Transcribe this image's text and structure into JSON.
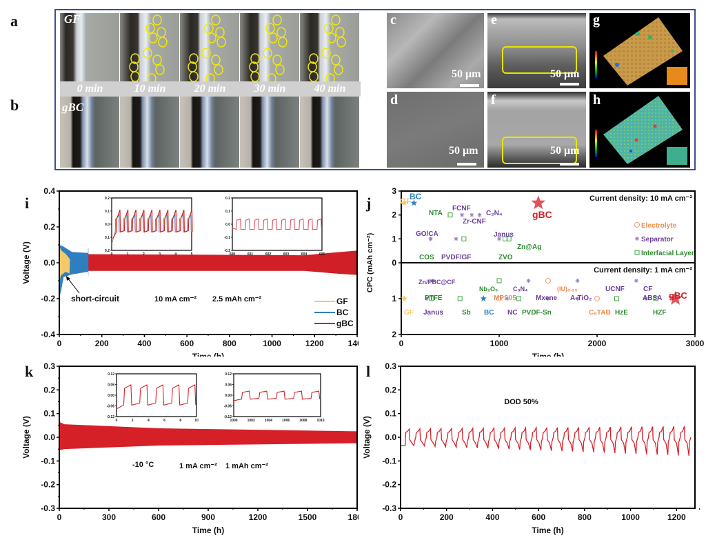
{
  "panel_labels": {
    "a": "a",
    "b": "b",
    "c": "c",
    "d": "d",
    "e": "e",
    "f": "f",
    "g": "g",
    "h": "h",
    "i": "i",
    "j": "j",
    "k": "k",
    "l": "l"
  },
  "microscopy": {
    "row_a_label": "GF",
    "row_b_label": "gBC",
    "time_labels": [
      "0 min",
      "10 min",
      "20 min",
      "30 min",
      "40 min"
    ],
    "scale_bar": "50 μm"
  },
  "colors": {
    "GF": "#f5c96a",
    "BC": "#2f7fc0",
    "gBC": "#d01f26",
    "red_line": "#d62028",
    "separator": "#6a3d9a",
    "interfacial": "#2e8b2e",
    "electrolyte": "#f08a4b"
  },
  "chart_data": [
    {
      "id": "i",
      "type": "line",
      "xlabel": "Time (h)",
      "ylabel": "Voltage (V)",
      "xlim": [
        0,
        1400
      ],
      "ylim": [
        -0.4,
        0.4
      ],
      "xticks": [
        "0",
        "200",
        "400",
        "600",
        "800",
        "1000",
        "1200",
        "1400"
      ],
      "yticks": [
        "-0.4",
        "-0.2",
        "0.0",
        "0.2",
        "0.4"
      ],
      "annotations": [
        "short-circuit",
        "10 mA cm⁻²",
        "2.5 mAh cm⁻²"
      ],
      "legend": [
        "GF",
        "BC",
        "gBC"
      ],
      "legend_position": "bottom-right",
      "series": [
        {
          "name": "GF",
          "x_end": 50,
          "envelope": [
            0.1,
            -0.12
          ]
        },
        {
          "name": "BC",
          "x_end": 135,
          "envelope": [
            0.1,
            -0.18
          ]
        },
        {
          "name": "gBC",
          "x_start": 135,
          "x_end": 1400,
          "envelope": [
            0.05,
            -0.05
          ]
        }
      ],
      "insets": [
        {
          "xlim": [
            0,
            5
          ],
          "ylim": [
            -0.2,
            0.2
          ],
          "xticks": [
            "0",
            "1",
            "2",
            "3",
            "4",
            "5"
          ],
          "yticks": [
            "0.2",
            "0.1",
            "0.0",
            "0.1",
            "0.2"
          ],
          "series": [
            "GF",
            "BC",
            "gBC"
          ],
          "cycles": 10
        },
        {
          "xlim": [
            600,
            605
          ],
          "ylim": [
            -0.2,
            0.2
          ],
          "xticks": [
            "600",
            "601",
            "602",
            "603",
            "604",
            "605"
          ],
          "yticks": [
            "0.2",
            "0.1",
            "0.0",
            "-0.1",
            "-0.2"
          ],
          "series": [
            "gBC"
          ],
          "cycles": 10,
          "amplitude": 0.04
        }
      ]
    },
    {
      "id": "j",
      "type": "scatter",
      "xlabel": "Time (h)",
      "ylabel": "CPC (mAh cm⁻²)",
      "xlim": [
        0,
        3000
      ],
      "xticks": [
        "0",
        "1000",
        "2000",
        "3000"
      ],
      "top_panel": {
        "title": "Current density: 10 mA cm⁻²",
        "ylim": [
          0,
          3
        ],
        "yticks": [
          "0",
          "1",
          "2",
          "3"
        ],
        "points": [
          {
            "label": "GF",
            "x": 30,
            "y": 2.5,
            "cat": "GF"
          },
          {
            "label": "BC",
            "x": 130,
            "y": 2.5,
            "cat": "BC"
          },
          {
            "label": "NTA",
            "x": 500,
            "y": 2.0,
            "cat": "interfacial"
          },
          {
            "label": "FCNF",
            "x": 620,
            "y": 2.0,
            "cat": "separator"
          },
          {
            "label": "Zr-CNF",
            "x": 720,
            "y": 2.0,
            "cat": "separator"
          },
          {
            "label": "C₂N₄",
            "x": 800,
            "y": 2.0,
            "cat": "separator"
          },
          {
            "label": "GO/CA",
            "x": 300,
            "y": 1.0,
            "cat": "separator"
          },
          {
            "label": "COS",
            "x": 300,
            "y": 1.0,
            "cat": "separator"
          },
          {
            "label": "PVDF/GF",
            "x": 560,
            "y": 1.0,
            "cat": "separator"
          },
          {
            "label": "PVDF/GF",
            "x": 640,
            "y": 1.0,
            "cat": "interfacial"
          },
          {
            "label": "Janus",
            "x": 1000,
            "y": 1.0,
            "cat": "separator"
          },
          {
            "label": "ZVO",
            "x": 1060,
            "y": 1.0,
            "cat": "interfacial"
          },
          {
            "label": "Zn@Ag",
            "x": 1100,
            "y": 1.0,
            "cat": "interfacial"
          },
          {
            "label": "gBC",
            "x": 1400,
            "y": 2.5,
            "cat": "gBC"
          }
        ],
        "legend": [
          "Electrolyte",
          "Separator",
          "Interfacial Layer"
        ],
        "legend_position": "right"
      },
      "bottom_panel": {
        "title": "Current density: 1 mA cm⁻²",
        "ylim": [
          0,
          2
        ],
        "yticks": [
          "0",
          "1",
          "2"
        ],
        "points": [
          {
            "label": "GF",
            "x": 30,
            "y": 1.0,
            "cat": "GF"
          },
          {
            "label": "Zn/PBC@CF",
            "x": 320,
            "y": 0.5,
            "cat": "separator"
          },
          {
            "label": "Janus",
            "x": 260,
            "y": 1.0,
            "cat": "separator"
          },
          {
            "label": "PTFE",
            "x": 310,
            "y": 1.0,
            "cat": "interfacial"
          },
          {
            "label": "Sb",
            "x": 600,
            "y": 1.0,
            "cat": "interfacial"
          },
          {
            "label": "Nb₂O₅",
            "x": 1000,
            "y": 0.5,
            "cat": "interfacial"
          },
          {
            "label": "BC",
            "x": 840,
            "y": 1.0,
            "cat": "BC"
          },
          {
            "label": "MPS05",
            "x": 1000,
            "y": 1.0,
            "cat": "electrolyte"
          },
          {
            "label": "NC",
            "x": 1080,
            "y": 1.0,
            "cat": "separator"
          },
          {
            "label": "PVDF-Sn",
            "x": 1200,
            "y": 1.0,
            "cat": "interfacial"
          },
          {
            "label": "C₃N₄",
            "x": 1300,
            "y": 0.5,
            "cat": "separator"
          },
          {
            "label": "(IU)₀.₂₅",
            "x": 1500,
            "y": 0.5,
            "cat": "electrolyte"
          },
          {
            "label": "Mxene",
            "x": 1500,
            "y": 1.0,
            "cat": "separator"
          },
          {
            "label": "UCNF",
            "x": 1800,
            "y": 0.5,
            "cat": "separator"
          },
          {
            "label": "A-TiO₂",
            "x": 1800,
            "y": 1.0,
            "cat": "separator"
          },
          {
            "label": "C₈TAB",
            "x": 2000,
            "y": 1.0,
            "cat": "electrolyte"
          },
          {
            "label": "HzE",
            "x": 2200,
            "y": 1.0,
            "cat": "interfacial"
          },
          {
            "label": "CF",
            "x": 2400,
            "y": 0.5,
            "cat": "separator"
          },
          {
            "label": "ABSA",
            "x": 2500,
            "y": 1.0,
            "cat": "separator"
          },
          {
            "label": "HZF",
            "x": 2600,
            "y": 1.0,
            "cat": "interfacial"
          },
          {
            "label": "gBC",
            "x": 2800,
            "y": 1.0,
            "cat": "gBC"
          }
        ]
      }
    },
    {
      "id": "k",
      "type": "line",
      "xlabel": "Time (h)",
      "ylabel": "Voltage (V)",
      "xlim": [
        0,
        1800
      ],
      "ylim": [
        -0.3,
        0.3
      ],
      "xticks": [
        "0",
        "300",
        "600",
        "900",
        "1200",
        "1500",
        "1800"
      ],
      "yticks": [
        "-0.3",
        "-0.2",
        "-0.1",
        "0.0",
        "0.1",
        "0.2",
        "0.3"
      ],
      "annotations": [
        "-10 °C",
        "1 mA cm⁻²",
        "1 mAh cm⁻²"
      ],
      "series": [
        {
          "name": "gBC",
          "envelope_start": [
            0.065,
            -0.055
          ],
          "envelope_end": [
            0.025,
            -0.025
          ]
        }
      ],
      "insets": [
        {
          "xlim": [
            0,
            10
          ],
          "ylim": [
            -0.12,
            0.12
          ],
          "xticks": [
            "0",
            "2",
            "4",
            "6",
            "8",
            "10"
          ],
          "yticks": [
            "0.12",
            "0.06",
            "0.00",
            "-0.06",
            "-0.12"
          ],
          "cycles": 5,
          "amplitude": 0.055
        },
        {
          "xlim": [
            1000,
            1010
          ],
          "ylim": [
            -0.12,
            0.12
          ],
          "xticks": [
            "1000",
            "1002",
            "1004",
            "1006",
            "1008",
            "1010"
          ],
          "yticks": [
            "0.12",
            "0.06",
            "0.00",
            "-0.06",
            "-0.12"
          ],
          "cycles": 5,
          "amplitude": 0.022
        }
      ]
    },
    {
      "id": "l",
      "type": "line",
      "xlabel": "Time (h)",
      "ylabel": "Voltage (V)",
      "xlim": [
        0,
        1280
      ],
      "ylim": [
        -0.3,
        0.3
      ],
      "xticks": [
        "0",
        "200",
        "400",
        "600",
        "800",
        "1000",
        "1200"
      ],
      "yticks": [
        "-0.3",
        "-0.2",
        "-0.1",
        "0.0",
        "0.1",
        "0.2",
        "0.3"
      ],
      "annotations": [
        "DOD 50%"
      ],
      "series": [
        {
          "name": "gBC",
          "cycles": 27,
          "period_h": 46,
          "peak": 0.04,
          "trough": -0.04,
          "dip_end": -0.08
        }
      ]
    }
  ]
}
